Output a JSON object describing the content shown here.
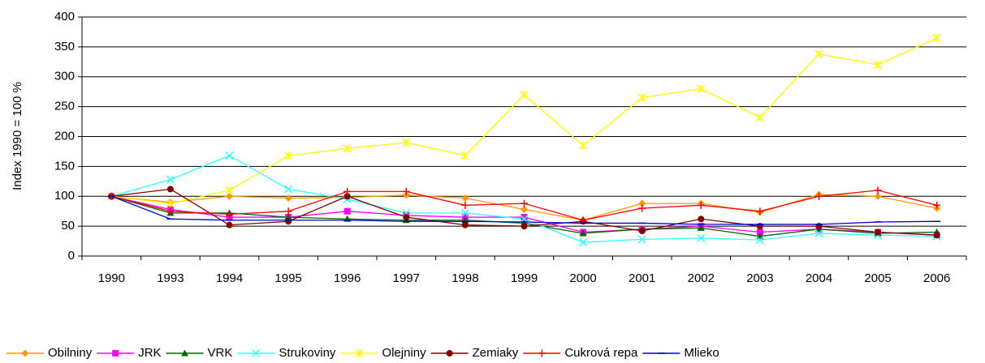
{
  "chart_data": {
    "type": "line",
    "ylabel": "Index 1990 = 100 %",
    "categories": [
      "1990",
      "1993",
      "1994",
      "1995",
      "1996",
      "1997",
      "1998",
      "1999",
      "2000",
      "2001",
      "2002",
      "2003",
      "2004",
      "2005",
      "2006"
    ],
    "ylim": [
      0,
      400
    ],
    "yticks": [
      0,
      50,
      100,
      150,
      200,
      250,
      300,
      350,
      400
    ],
    "grid": true,
    "legend": "bottom",
    "series": [
      {
        "name": "Obilniny",
        "color": "#ff9900",
        "marker": "diamond",
        "values": [
          100,
          90,
          100,
          97,
          98,
          102,
          97,
          78,
          60,
          88,
          88,
          73,
          103,
          100,
          80
        ]
      },
      {
        "name": "JRK",
        "color": "#ff00ff",
        "marker": "square",
        "values": [
          100,
          78,
          65,
          65,
          75,
          68,
          65,
          65,
          40,
          45,
          50,
          40,
          45,
          40,
          35
        ]
      },
      {
        "name": "VRK",
        "color": "#006600",
        "marker": "triangle",
        "values": [
          100,
          72,
          72,
          65,
          62,
          60,
          60,
          55,
          38,
          45,
          47,
          33,
          45,
          38,
          40
        ]
      },
      {
        "name": "Strukoviny",
        "color": "#33ffff",
        "marker": "x",
        "values": [
          100,
          128,
          168,
          112,
          95,
          72,
          72,
          62,
          23,
          28,
          30,
          27,
          38,
          35,
          33
        ]
      },
      {
        "name": "Olejniny",
        "color": "#ffff00",
        "marker": "star",
        "values": [
          100,
          88,
          110,
          168,
          180,
          190,
          168,
          270,
          185,
          265,
          280,
          232,
          338,
          320,
          365
        ]
      },
      {
        "name": "Zemiaky",
        "color": "#800000",
        "marker": "circle",
        "values": [
          100,
          112,
          52,
          58,
          100,
          65,
          52,
          50,
          58,
          42,
          62,
          50,
          50,
          40,
          35
        ]
      },
      {
        "name": "Cukrová repa",
        "color": "#ff0000",
        "marker": "plus",
        "values": [
          100,
          75,
          70,
          75,
          108,
          108,
          85,
          88,
          60,
          80,
          85,
          75,
          100,
          110,
          85
        ]
      },
      {
        "name": "Mlieko",
        "color": "#0000cc",
        "marker": "dash",
        "values": [
          100,
          62,
          60,
          60,
          60,
          58,
          58,
          57,
          55,
          55,
          53,
          53,
          53,
          57,
          58
        ]
      }
    ]
  }
}
